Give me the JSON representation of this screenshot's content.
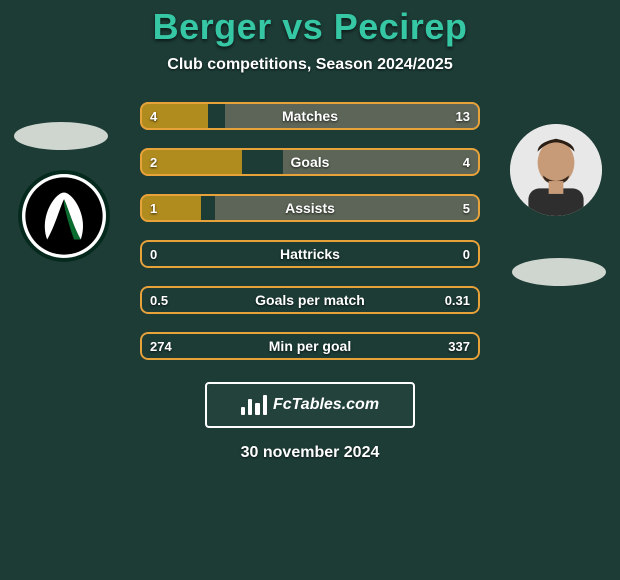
{
  "colors": {
    "background": "#1d3c36",
    "title": "#36c7a5",
    "row_border": "#e8a23a",
    "bar_left": "#b08b1e",
    "bar_right": "#5c6557",
    "ellipse": "#cfd6cf",
    "avatar_bg": "#dedede"
  },
  "title": "Berger vs Pecirep",
  "subtitle": "Club competitions, Season 2024/2025",
  "date": "30 november 2024",
  "attribution": "FcTables.com",
  "avatars": {
    "left": "club-crest",
    "right": "player-photo"
  },
  "rows": [
    {
      "label": "Matches",
      "left_val": "4",
      "right_val": "13",
      "left_pct": 20,
      "right_pct": 75
    },
    {
      "label": "Goals",
      "left_val": "2",
      "right_val": "4",
      "left_pct": 30,
      "right_pct": 58
    },
    {
      "label": "Assists",
      "left_val": "1",
      "right_val": "5",
      "left_pct": 18,
      "right_pct": 78
    },
    {
      "label": "Hattricks",
      "left_val": "0",
      "right_val": "0",
      "left_pct": 0,
      "right_pct": 0
    },
    {
      "label": "Goals per match",
      "left_val": "0.5",
      "right_val": "0.31",
      "left_pct": 0,
      "right_pct": 0
    },
    {
      "label": "Min per goal",
      "left_val": "274",
      "right_val": "337",
      "left_pct": 0,
      "right_pct": 0
    }
  ]
}
